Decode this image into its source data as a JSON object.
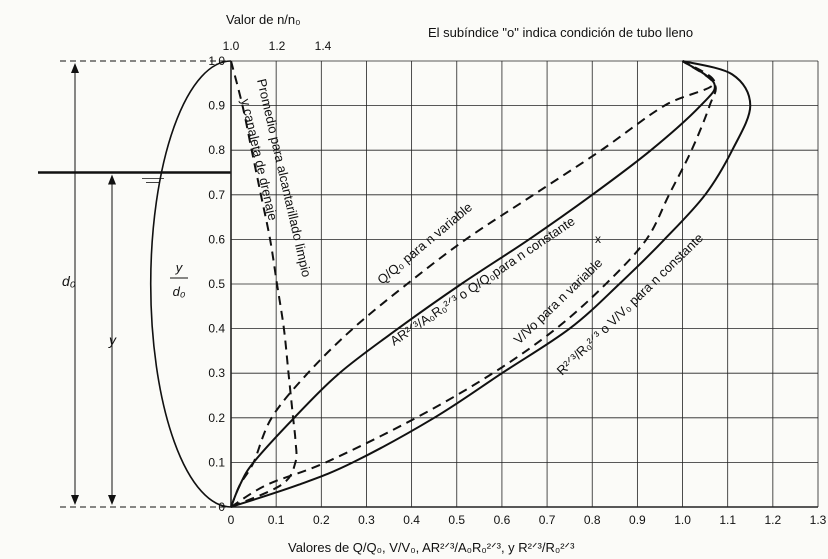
{
  "chart_data": {
    "type": "line",
    "note": "El subíndice \"o\" indica condición de tubo lleno",
    "top_axis": {
      "title": "Valor de n/n₀",
      "ticks": [
        "1.0",
        "1.2",
        "1.4"
      ],
      "tick_values": [
        1.0,
        1.2,
        1.4
      ]
    },
    "x_axis": {
      "title": "Valores de Q/Q₀, V/V₀, AR²ᐟ³/A₀R₀²ᐟ³, y R²ᐟ³/R₀²ᐟ³",
      "ticks": [
        "0",
        "0.1",
        "0.2",
        "0.3",
        "0.4",
        "0.5",
        "0.6",
        "0.7",
        "0.8",
        "0.9",
        "1.0",
        "1.1",
        "1.2",
        "1.3"
      ],
      "tick_values": [
        0,
        0.1,
        0.2,
        0.3,
        0.4,
        0.5,
        0.6,
        0.7,
        0.8,
        0.9,
        1.0,
        1.1,
        1.2,
        1.3
      ],
      "range": [
        0,
        1.3
      ]
    },
    "y_axis": {
      "title_num": "y",
      "title_den": "d₀",
      "ticks": [
        "0",
        "0.1",
        "0.2",
        "0.3",
        "0.4",
        "0.5",
        "0.6",
        "0.7",
        "0.8",
        "0.9",
        "1.0"
      ],
      "tick_values": [
        0,
        0.1,
        0.2,
        0.3,
        0.4,
        0.5,
        0.6,
        0.7,
        0.8,
        0.9,
        1.0
      ],
      "range": [
        0,
        1.0
      ]
    },
    "grid": true,
    "pipe_section": {
      "label_diameter": "d₀",
      "label_depth": "y",
      "water_level_ratio": 0.75
    },
    "series": [
      {
        "name": "Promedio para alcantarillado limpio y canaleta de drenaje",
        "style": "dashed",
        "x_scale": "top",
        "points": [
          [
            1.0,
            1.0
          ],
          [
            1.05,
            0.9
          ],
          [
            1.09,
            0.8
          ],
          [
            1.13,
            0.7
          ],
          [
            1.17,
            0.6
          ],
          [
            1.2,
            0.5
          ],
          [
            1.23,
            0.4
          ],
          [
            1.25,
            0.3
          ],
          [
            1.27,
            0.2
          ],
          [
            1.28,
            0.15
          ],
          [
            1.28,
            0.1
          ],
          [
            1.22,
            0.05
          ],
          [
            1.0,
            0.0
          ]
        ]
      },
      {
        "name": "Q/Q₀ para n variable",
        "style": "dashed",
        "points": [
          [
            0.0,
            0.0
          ],
          [
            0.02,
            0.05
          ],
          [
            0.05,
            0.1
          ],
          [
            0.09,
            0.2
          ],
          [
            0.17,
            0.3
          ],
          [
            0.27,
            0.4
          ],
          [
            0.39,
            0.5
          ],
          [
            0.52,
            0.6
          ],
          [
            0.67,
            0.7
          ],
          [
            0.82,
            0.8
          ],
          [
            0.96,
            0.9
          ],
          [
            1.07,
            0.95
          ],
          [
            1.0,
            1.0
          ]
        ]
      },
      {
        "name": "AR²ᐟ³/A₀R₀²ᐟ³ o Q/Q₀ para n constante",
        "style": "solid",
        "points": [
          [
            0.0,
            0.0
          ],
          [
            0.02,
            0.05
          ],
          [
            0.05,
            0.1
          ],
          [
            0.14,
            0.2
          ],
          [
            0.24,
            0.3
          ],
          [
            0.37,
            0.4
          ],
          [
            0.51,
            0.5
          ],
          [
            0.66,
            0.6
          ],
          [
            0.8,
            0.7
          ],
          [
            0.93,
            0.8
          ],
          [
            1.04,
            0.9
          ],
          [
            1.07,
            0.95
          ],
          [
            1.0,
            1.0
          ]
        ]
      },
      {
        "name": "V/Vo para n variable",
        "style": "dashed",
        "points": [
          [
            0.0,
            0.0
          ],
          [
            0.08,
            0.05
          ],
          [
            0.21,
            0.1
          ],
          [
            0.41,
            0.2
          ],
          [
            0.58,
            0.3
          ],
          [
            0.72,
            0.4
          ],
          [
            0.83,
            0.5
          ],
          [
            0.92,
            0.6
          ],
          [
            0.97,
            0.7
          ],
          [
            1.02,
            0.8
          ],
          [
            1.06,
            0.9
          ],
          [
            1.07,
            0.95
          ],
          [
            1.0,
            1.0
          ]
        ]
      },
      {
        "name": "R²ᐟ³/R₀²ᐟ³ o V/V₀ para n constante",
        "style": "solid",
        "points": [
          [
            0.0,
            0.0
          ],
          [
            0.15,
            0.05
          ],
          [
            0.27,
            0.1
          ],
          [
            0.45,
            0.2
          ],
          [
            0.6,
            0.3
          ],
          [
            0.75,
            0.4
          ],
          [
            0.86,
            0.5
          ],
          [
            0.96,
            0.6
          ],
          [
            1.05,
            0.7
          ],
          [
            1.11,
            0.8
          ],
          [
            1.15,
            0.9
          ],
          [
            1.11,
            0.97
          ],
          [
            1.0,
            1.0
          ]
        ]
      }
    ],
    "labels": {
      "curve_promedio": "Promedio para alcantarillado limpio",
      "curve_promedio_y": "y  canaleta de drenaje",
      "curve_q_var": "Q/Q₀ para n variable",
      "curve_ar": "AR²ᐟ³/A₀R₀²ᐟ³ o Q/Q₀para n constante",
      "curve_v_var": "V/Vo para n variable",
      "curve_r": "R²ᐟ³/R₀²ᐟ³ o V/V₀ para n constante",
      "x_marker": "x"
    }
  }
}
